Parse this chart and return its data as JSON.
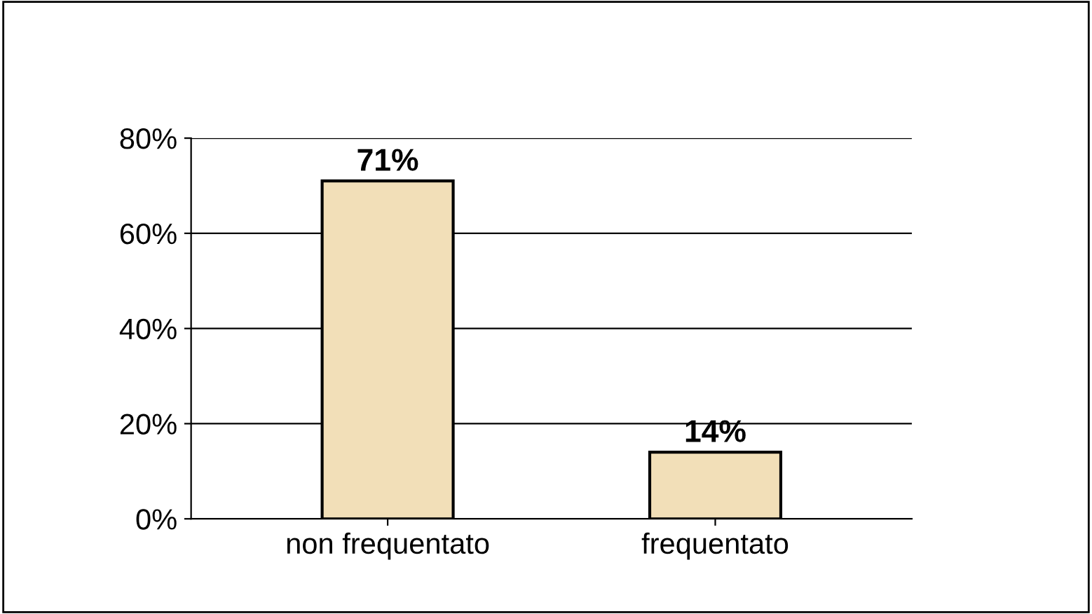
{
  "chart_data": {
    "type": "bar",
    "categories": [
      "non frequentato",
      "frequentato"
    ],
    "values": [
      71,
      14
    ],
    "value_labels": [
      "71%",
      "14%"
    ],
    "color": "#f2dfb8",
    "ylim": [
      0,
      80
    ],
    "yticks": [
      {
        "value": 0,
        "label": "0%"
      },
      {
        "value": 20,
        "label": "20%"
      },
      {
        "value": 40,
        "label": "40%"
      },
      {
        "value": 60,
        "label": "60%"
      },
      {
        "value": 80,
        "label": "80%"
      }
    ],
    "grid": "y",
    "legend": false
  }
}
